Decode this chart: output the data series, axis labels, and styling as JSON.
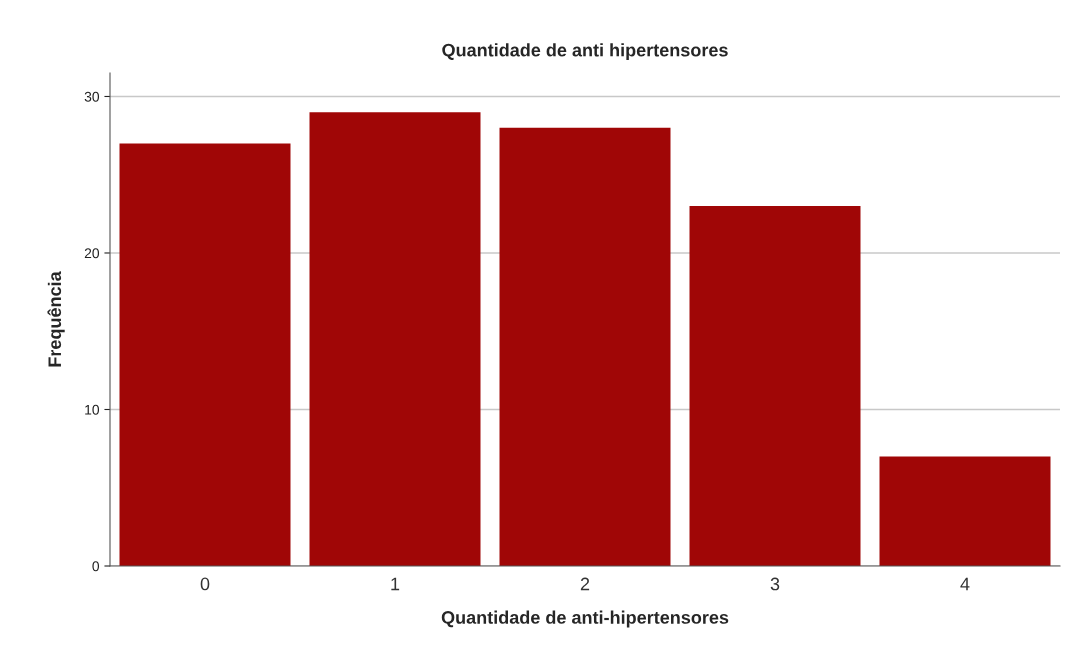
{
  "chart_data": {
    "type": "bar",
    "title": "Quantidade de anti hipertensores",
    "xlabel": "Quantidade de anti-hipertensores",
    "ylabel": "Frequência",
    "categories": [
      "0",
      "1",
      "2",
      "3",
      "4"
    ],
    "values": [
      27,
      29,
      28,
      23,
      7
    ],
    "color": "#a00606",
    "ylim": [
      0,
      31.5
    ],
    "yticks": [
      0,
      10,
      20,
      30
    ],
    "grid": "y"
  }
}
